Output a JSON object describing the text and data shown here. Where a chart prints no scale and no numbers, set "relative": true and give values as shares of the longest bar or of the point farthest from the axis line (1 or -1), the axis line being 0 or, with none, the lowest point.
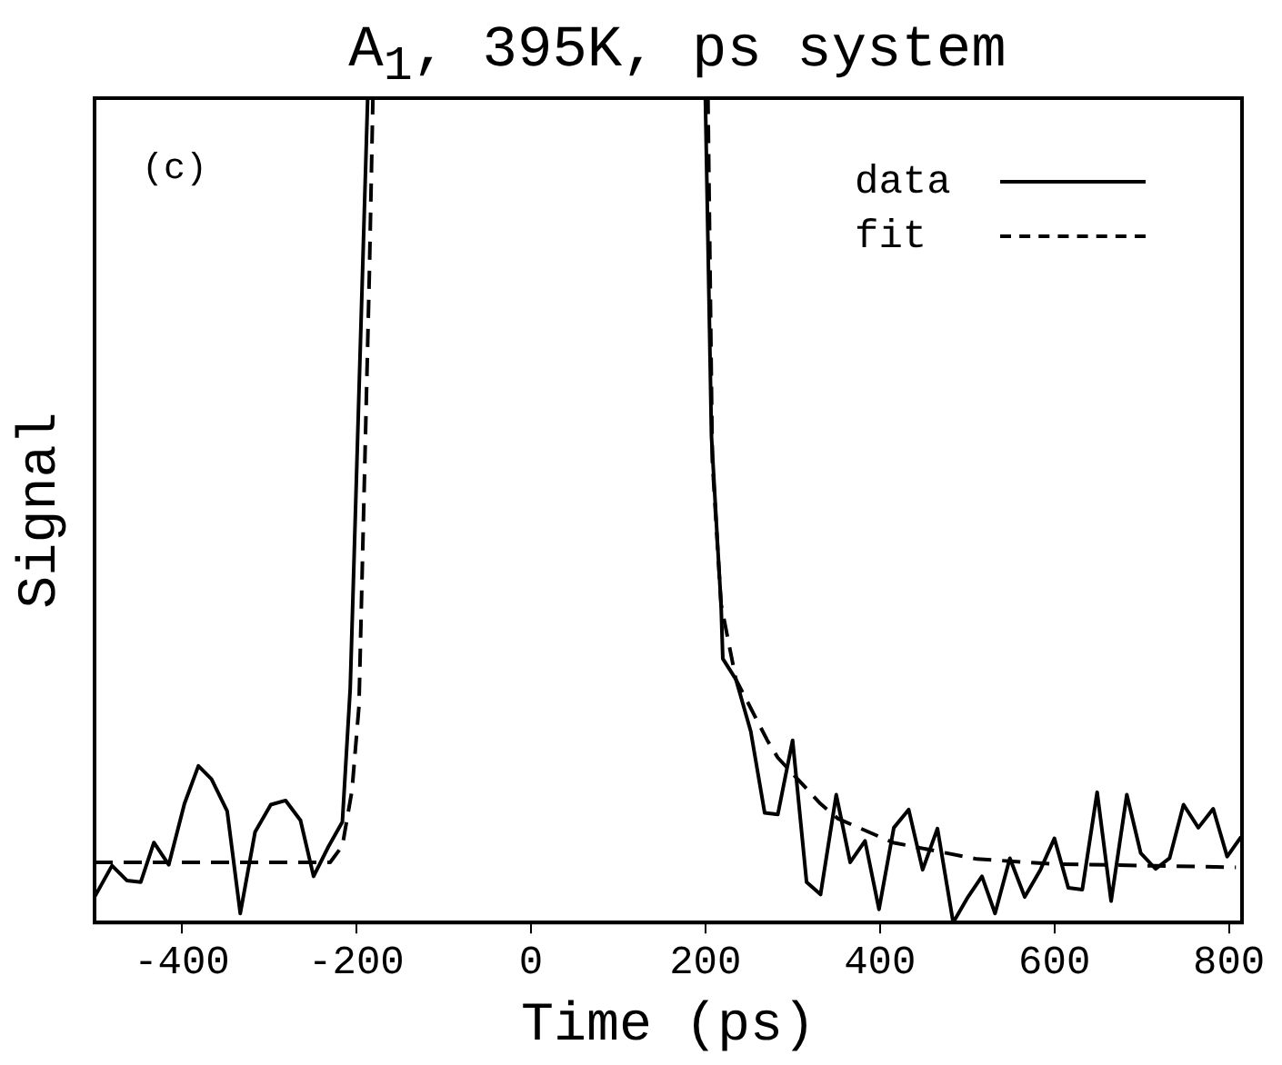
{
  "chart_data": {
    "type": "line",
    "title": "A$_{1}$, 395K, ps system",
    "xlabel": "Time (ps)",
    "ylabel": "Signal",
    "relative": true,
    "xlim": [
      -500,
      815
    ],
    "xticks": [
      -400,
      -200,
      0,
      200,
      400,
      600,
      800
    ],
    "grid": false,
    "legend": "top right",
    "marker": "none",
    "annotations": [
      "(c)"
    ],
    "series": [
      {
        "name": "data",
        "color": "#000000",
        "line_style": "solid",
        "x": [
          -500,
          -480,
          -463,
          -447,
          -432,
          -415,
          -397,
          -381,
          -366,
          -348,
          -333,
          -316,
          -298,
          -281,
          -264,
          -249,
          -232,
          -216,
          -207,
          -187,
          200,
          207,
          214,
          218,
          220,
          235,
          252,
          268,
          283,
          300,
          316,
          332,
          350,
          366,
          383,
          399,
          416,
          433,
          449,
          466,
          484,
          501,
          517,
          532,
          549,
          566,
          584,
          600,
          616,
          632,
          649,
          665,
          683,
          699,
          716,
          732,
          748,
          765,
          782,
          798,
          814
        ],
        "values": [
          0.031,
          0.069,
          0.051,
          0.049,
          0.097,
          0.07,
          0.144,
          0.19,
          0.174,
          0.135,
          0.011,
          0.11,
          0.143,
          0.148,
          0.124,
          0.056,
          0.092,
          0.122,
          0.284,
          1,
          1,
          0.59,
          0.459,
          0.386,
          0.32,
          0.295,
          0.232,
          0.133,
          0.131,
          0.221,
          0.049,
          0.034,
          0.155,
          0.073,
          0.099,
          0.016,
          0.115,
          0.137,
          0.064,
          0.114,
          0,
          0.031,
          0.056,
          0.011,
          0.078,
          0.031,
          0.064,
          0.102,
          0.042,
          0.04,
          0.158,
          0.026,
          0.155,
          0.084,
          0.065,
          0.078,
          0.143,
          0.115,
          0.138,
          0.08,
          0.104
        ]
      },
      {
        "name": "fit",
        "color": "#000000",
        "line_style": "dashed",
        "x": [
          -500,
          -230,
          -216,
          -205,
          -197,
          -185,
          -181,
          203,
          208,
          218,
          235,
          271,
          283,
          332,
          352,
          415,
          511,
          600,
          808
        ],
        "values": [
          0.073,
          0.073,
          0.093,
          0.16,
          0.262,
          0.79,
          1,
          1,
          0.56,
          0.386,
          0.295,
          0.221,
          0.2,
          0.144,
          0.126,
          0.097,
          0.077,
          0.071,
          0.067
        ]
      }
    ]
  }
}
